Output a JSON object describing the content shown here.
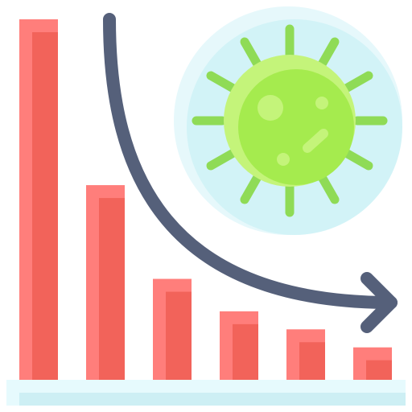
{
  "icon": {
    "name": "virus-cases-decline-icon",
    "description_tags": [
      "bar-chart-icon",
      "downward-arrow-icon",
      "virus-icon"
    ]
  },
  "chart_data": {
    "type": "bar",
    "categories": [
      "",
      "",
      "",
      "",
      "",
      ""
    ],
    "values": [
      100,
      54,
      28,
      19,
      14,
      9
    ],
    "ylim": [
      0,
      100
    ],
    "grid": false
  },
  "colors": {
    "bar_light": "#FF7E7B",
    "bar_dark": "#F2635A",
    "arrow": "#55607A",
    "virus_halo": "#E6F8FB",
    "virus_bg": "#D2F3F7",
    "virus_spike": "#8FDB56",
    "virus_body": "#A5EB4E",
    "virus_body_light": "#C4F47A",
    "baseline_light": "#E6FAFD",
    "baseline_dark": "#CDEFF4"
  }
}
